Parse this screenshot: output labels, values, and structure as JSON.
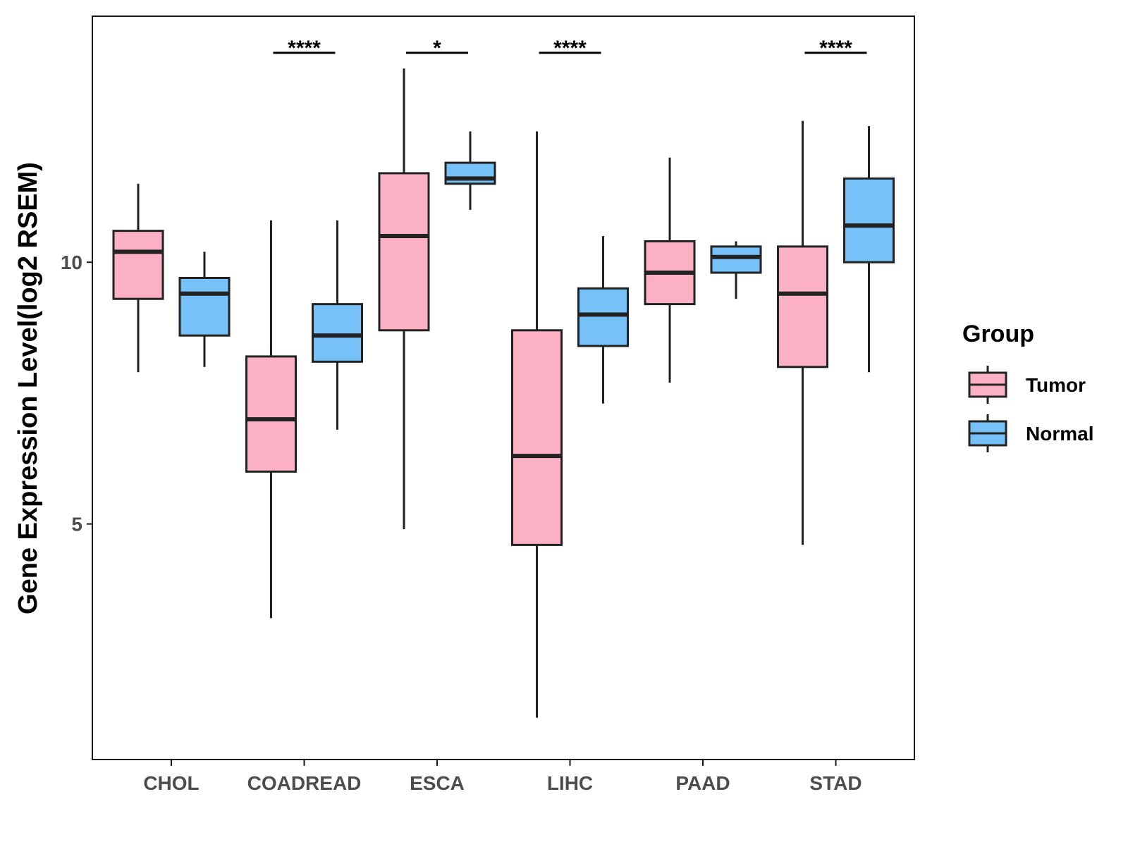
{
  "chart_data": {
    "type": "boxplot",
    "title": "",
    "xlabel": "",
    "ylabel": "Gene Expression Level(log2 RSEM)",
    "ylim": [
      0.5,
      14.7
    ],
    "yticks": [
      5,
      10
    ],
    "ytick_labels": [
      "5",
      "10"
    ],
    "categories": [
      "CHOL",
      "COADREAD",
      "ESCA",
      "LIHC",
      "PAAD",
      "STAD"
    ],
    "series": [
      {
        "name": "Tumor",
        "color": "#FBB1C3",
        "boxes": [
          {
            "min": 7.9,
            "q1": 9.3,
            "median": 10.2,
            "q3": 10.6,
            "max": 11.5
          },
          {
            "min": 3.2,
            "q1": 6.0,
            "median": 7.0,
            "q3": 8.2,
            "max": 10.8
          },
          {
            "min": 4.9,
            "q1": 8.7,
            "median": 10.5,
            "q3": 11.7,
            "max": 13.7
          },
          {
            "min": 1.3,
            "q1": 4.6,
            "median": 6.3,
            "q3": 8.7,
            "max": 12.5
          },
          {
            "min": 7.7,
            "q1": 9.2,
            "median": 9.8,
            "q3": 10.4,
            "max": 12.0
          },
          {
            "min": 4.6,
            "q1": 8.0,
            "median": 9.4,
            "q3": 10.3,
            "max": 12.7
          }
        ]
      },
      {
        "name": "Normal",
        "color": "#75C1F8",
        "boxes": [
          {
            "min": 8.0,
            "q1": 8.6,
            "median": 9.4,
            "q3": 9.7,
            "max": 10.2
          },
          {
            "min": 6.8,
            "q1": 8.1,
            "median": 8.6,
            "q3": 9.2,
            "max": 10.8
          },
          {
            "min": 11.0,
            "q1": 11.5,
            "median": 11.6,
            "q3": 11.9,
            "max": 12.5
          },
          {
            "min": 7.3,
            "q1": 8.4,
            "median": 9.0,
            "q3": 9.5,
            "max": 10.5
          },
          {
            "min": 9.3,
            "q1": 9.8,
            "median": 10.1,
            "q3": 10.3,
            "max": 10.4
          },
          {
            "min": 7.9,
            "q1": 10.0,
            "median": 10.7,
            "q3": 11.6,
            "max": 12.6
          }
        ]
      }
    ],
    "significance": [
      "",
      "****",
      "*",
      "****",
      "",
      "****"
    ],
    "legend": {
      "title": "Group",
      "entries": [
        "Tumor",
        "Normal"
      ],
      "position": "right"
    },
    "colors": {
      "tumor": "#FBB1C3",
      "normal": "#75C1F8",
      "line": "#222222",
      "axis": "#1a1a1a"
    }
  }
}
